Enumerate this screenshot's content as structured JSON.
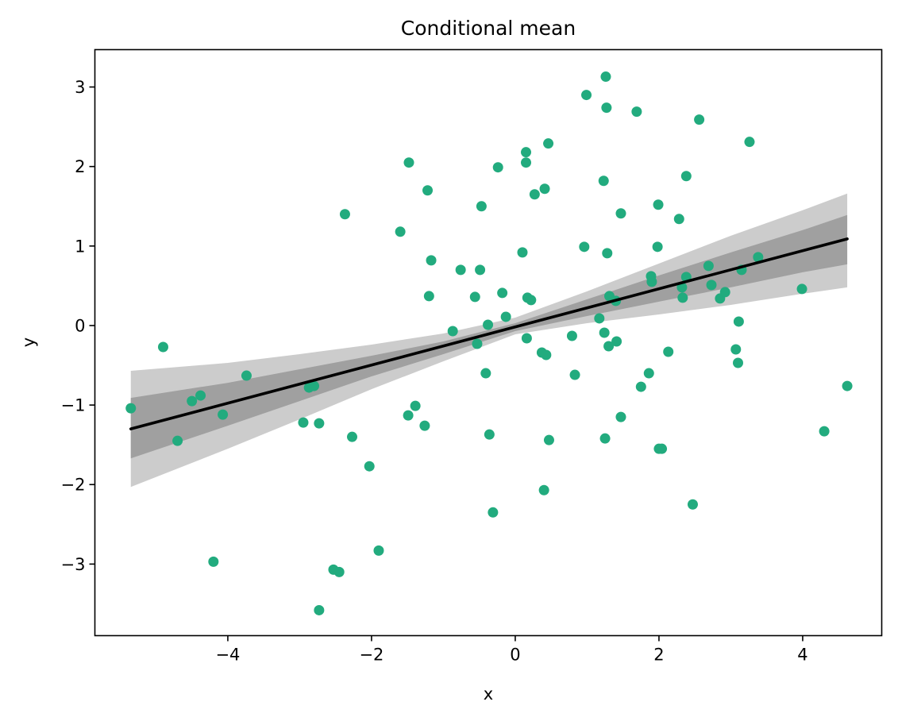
{
  "chart_data": {
    "type": "scatter",
    "title": "Conditional mean",
    "xlabel": "x",
    "ylabel": "y",
    "xlim": [
      -5.85,
      5.1
    ],
    "ylim": [
      -3.9,
      3.47
    ],
    "xticks": [
      -4,
      -2,
      0,
      2,
      4
    ],
    "yticks": [
      -3,
      -2,
      -1,
      0,
      1,
      2,
      3
    ],
    "xtick_labels": [
      "−4",
      "−2",
      "0",
      "2",
      "4"
    ],
    "ytick_labels": [
      "−3",
      "−2",
      "−1",
      "0",
      "1",
      "2",
      "3"
    ],
    "grid": false,
    "colors": {
      "points": "#22ab7e",
      "mean_line": "#000000",
      "inner_band": "#a0a0a0",
      "outer_band": "#cccccc"
    },
    "mean_line": {
      "x": [
        -5.35,
        4.62
      ],
      "y": [
        -1.3,
        1.09
      ]
    },
    "bands": {
      "x": [
        -5.35,
        -4,
        -3,
        -2,
        -1,
        0,
        1,
        2,
        3,
        4,
        4.62
      ],
      "inner_lower": [
        -1.67,
        -1.26,
        -0.95,
        -0.64,
        -0.36,
        -0.07,
        0.12,
        0.3,
        0.48,
        0.67,
        0.77
      ],
      "inner_upper": [
        -0.91,
        -0.72,
        -0.55,
        -0.38,
        -0.2,
        0.03,
        0.33,
        0.63,
        0.92,
        1.2,
        1.39
      ],
      "outer_lower": [
        -2.03,
        -1.55,
        -1.18,
        -0.8,
        -0.45,
        -0.11,
        0.03,
        0.14,
        0.26,
        0.4,
        0.48
      ],
      "outer_upper": [
        -0.57,
        -0.47,
        -0.36,
        -0.24,
        -0.1,
        0.1,
        0.43,
        0.78,
        1.13,
        1.45,
        1.66
      ]
    },
    "points": [
      [
        -5.35,
        -1.04
      ],
      [
        -4.9,
        -0.27
      ],
      [
        -4.7,
        -1.45
      ],
      [
        -4.5,
        -0.95
      ],
      [
        -4.38,
        -0.88
      ],
      [
        -4.2,
        -2.97
      ],
      [
        -4.07,
        -1.12
      ],
      [
        -3.74,
        -0.63
      ],
      [
        -2.95,
        -1.22
      ],
      [
        -2.87,
        -0.78
      ],
      [
        -2.8,
        -0.76
      ],
      [
        -2.73,
        -1.23
      ],
      [
        -2.73,
        -3.58
      ],
      [
        -2.37,
        1.4
      ],
      [
        -2.27,
        -1.4
      ],
      [
        -2.53,
        -3.07
      ],
      [
        -2.45,
        -3.1
      ],
      [
        -2.03,
        -1.77
      ],
      [
        -1.9,
        -2.83
      ],
      [
        -1.6,
        1.18
      ],
      [
        -1.48,
        2.05
      ],
      [
        -1.49,
        -1.13
      ],
      [
        -1.39,
        -1.01
      ],
      [
        -1.26,
        -1.26
      ],
      [
        -1.22,
        1.7
      ],
      [
        -1.2,
        0.37
      ],
      [
        -1.17,
        0.82
      ],
      [
        -0.87,
        -0.07
      ],
      [
        -0.76,
        0.7
      ],
      [
        -0.56,
        0.36
      ],
      [
        -0.53,
        -0.23
      ],
      [
        -0.49,
        0.7
      ],
      [
        -0.47,
        1.5
      ],
      [
        -0.41,
        -0.6
      ],
      [
        -0.38,
        0.01
      ],
      [
        -0.36,
        -1.37
      ],
      [
        -0.31,
        -2.35
      ],
      [
        -0.24,
        1.99
      ],
      [
        -0.18,
        0.41
      ],
      [
        -0.13,
        0.11
      ],
      [
        0.1,
        0.92
      ],
      [
        0.15,
        2.18
      ],
      [
        0.15,
        2.05
      ],
      [
        0.16,
        -0.16
      ],
      [
        0.17,
        0.35
      ],
      [
        0.22,
        0.32
      ],
      [
        0.27,
        1.65
      ],
      [
        0.37,
        -0.34
      ],
      [
        0.41,
        1.72
      ],
      [
        0.4,
        -2.07
      ],
      [
        0.43,
        -0.37
      ],
      [
        0.46,
        2.29
      ],
      [
        0.47,
        -1.44
      ],
      [
        0.79,
        -0.13
      ],
      [
        0.83,
        -0.62
      ],
      [
        0.96,
        0.99
      ],
      [
        0.99,
        2.9
      ],
      [
        1.17,
        0.09
      ],
      [
        1.23,
        1.82
      ],
      [
        1.24,
        -0.09
      ],
      [
        1.25,
        -1.42
      ],
      [
        1.26,
        3.13
      ],
      [
        1.27,
        2.74
      ],
      [
        1.28,
        0.91
      ],
      [
        1.3,
        -0.26
      ],
      [
        1.31,
        0.37
      ],
      [
        1.4,
        0.31
      ],
      [
        1.41,
        -0.2
      ],
      [
        1.47,
        1.41
      ],
      [
        1.47,
        -1.15
      ],
      [
        1.69,
        2.69
      ],
      [
        1.75,
        -0.77
      ],
      [
        1.86,
        -0.6
      ],
      [
        1.89,
        0.62
      ],
      [
        1.9,
        0.55
      ],
      [
        1.98,
        0.99
      ],
      [
        1.99,
        1.52
      ],
      [
        2.0,
        -1.55
      ],
      [
        2.04,
        -1.55
      ],
      [
        2.13,
        -0.33
      ],
      [
        2.28,
        1.34
      ],
      [
        2.32,
        0.48
      ],
      [
        2.33,
        0.35
      ],
      [
        2.38,
        0.61
      ],
      [
        2.38,
        1.88
      ],
      [
        2.47,
        -2.25
      ],
      [
        2.56,
        2.59
      ],
      [
        2.69,
        0.75
      ],
      [
        2.73,
        0.51
      ],
      [
        2.85,
        0.34
      ],
      [
        2.92,
        0.42
      ],
      [
        3.07,
        -0.3
      ],
      [
        3.1,
        -0.47
      ],
      [
        3.11,
        0.05
      ],
      [
        3.15,
        0.7
      ],
      [
        3.26,
        2.31
      ],
      [
        3.38,
        0.86
      ],
      [
        3.99,
        0.46
      ],
      [
        4.3,
        -1.33
      ],
      [
        4.62,
        -0.76
      ]
    ]
  }
}
